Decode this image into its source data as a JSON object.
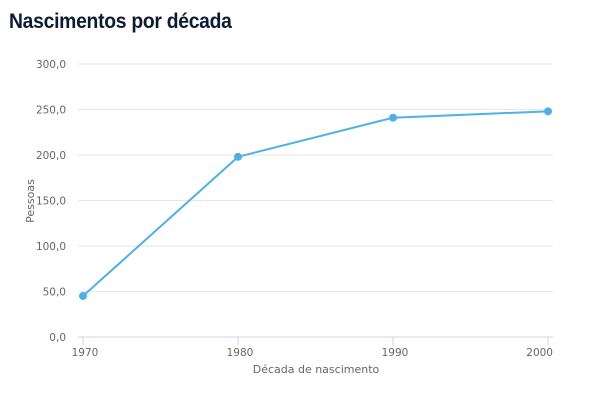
{
  "title": "Nascimentos por década",
  "chart_data": {
    "type": "line",
    "title": "Nascimentos por década",
    "xlabel": "Década de nascimento",
    "ylabel": "Pessoas",
    "categories": [
      "1970",
      "1980",
      "1990",
      "2000"
    ],
    "series": [
      {
        "name": "Pessoas",
        "values": [
          45,
          198,
          241,
          248
        ],
        "color": "#4fb0e6"
      }
    ],
    "ylim": [
      0,
      300
    ],
    "yticks": [
      0,
      50,
      100,
      150,
      200,
      250,
      300
    ],
    "ytick_labels": [
      "0,0",
      "50,0",
      "100,0",
      "150,0",
      "200,0",
      "250,0",
      "300,0"
    ],
    "grid": true,
    "legend": false
  },
  "colors": {
    "line": "#4fb0e6",
    "grid": "#e6e6e6",
    "axis": "#ccd6eb",
    "title": "#0d1b33",
    "text": "#666666"
  }
}
